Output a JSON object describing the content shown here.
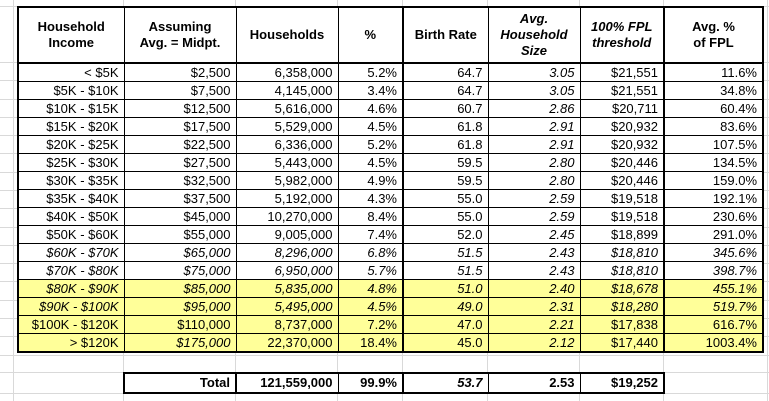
{
  "colors": {
    "highlight": "#FFFF99",
    "table_border": "#000000",
    "gridline": "#D9D9D9",
    "text": "#000000"
  },
  "table": {
    "columns": [
      "Household\nIncome",
      "Assuming\nAvg. = Midpt.",
      "Households",
      "%",
      "Birth Rate",
      "Avg.\nHousehold\nSize",
      "100% FPL\nthreshold",
      "Avg. %\nof FPL"
    ],
    "col_keys": [
      "income",
      "midpoint",
      "households",
      "pct",
      "birth_rate",
      "avg_hh_size",
      "fpl_threshold",
      "avg_pct_fpl"
    ],
    "rows": [
      {
        "income": "< $5K",
        "midpoint": "$2,500",
        "households": "6,358,000",
        "pct": "5.2%",
        "birth_rate": "64.7",
        "avg_hh_size": "3.05",
        "fpl_threshold": "$21,551",
        "avg_pct_fpl": "11.6%",
        "highlight": false,
        "italic": []
      },
      {
        "income": "$5K - $10K",
        "midpoint": "$7,500",
        "households": "4,145,000",
        "pct": "3.4%",
        "birth_rate": "64.7",
        "avg_hh_size": "3.05",
        "fpl_threshold": "$21,551",
        "avg_pct_fpl": "34.8%",
        "highlight": false,
        "italic": []
      },
      {
        "income": "$10K - $15K",
        "midpoint": "$12,500",
        "households": "5,616,000",
        "pct": "4.6%",
        "birth_rate": "60.7",
        "avg_hh_size": "2.86",
        "fpl_threshold": "$20,711",
        "avg_pct_fpl": "60.4%",
        "highlight": false,
        "italic": []
      },
      {
        "income": "$15K - $20K",
        "midpoint": "$17,500",
        "households": "5,529,000",
        "pct": "4.5%",
        "birth_rate": "61.8",
        "avg_hh_size": "2.91",
        "fpl_threshold": "$20,932",
        "avg_pct_fpl": "83.6%",
        "highlight": false,
        "italic": []
      },
      {
        "income": "$20K - $25K",
        "midpoint": "$22,500",
        "households": "6,336,000",
        "pct": "5.2%",
        "birth_rate": "61.8",
        "avg_hh_size": "2.91",
        "fpl_threshold": "$20,932",
        "avg_pct_fpl": "107.5%",
        "highlight": false,
        "italic": []
      },
      {
        "income": "$25K - $30K",
        "midpoint": "$27,500",
        "households": "5,443,000",
        "pct": "4.5%",
        "birth_rate": "59.5",
        "avg_hh_size": "2.80",
        "fpl_threshold": "$20,446",
        "avg_pct_fpl": "134.5%",
        "highlight": false,
        "italic": []
      },
      {
        "income": "$30K - $35K",
        "midpoint": "$32,500",
        "households": "5,982,000",
        "pct": "4.9%",
        "birth_rate": "59.5",
        "avg_hh_size": "2.80",
        "fpl_threshold": "$20,446",
        "avg_pct_fpl": "159.0%",
        "highlight": false,
        "italic": []
      },
      {
        "income": "$35K - $40K",
        "midpoint": "$37,500",
        "households": "5,192,000",
        "pct": "4.3%",
        "birth_rate": "55.0",
        "avg_hh_size": "2.59",
        "fpl_threshold": "$19,518",
        "avg_pct_fpl": "192.1%",
        "highlight": false,
        "italic": []
      },
      {
        "income": "$40K - $50K",
        "midpoint": "$45,000",
        "households": "10,270,000",
        "pct": "8.4%",
        "birth_rate": "55.0",
        "avg_hh_size": "2.59",
        "fpl_threshold": "$19,518",
        "avg_pct_fpl": "230.6%",
        "highlight": false,
        "italic": []
      },
      {
        "income": "$50K - $60K",
        "midpoint": "$55,000",
        "households": "9,005,000",
        "pct": "7.4%",
        "birth_rate": "52.0",
        "avg_hh_size": "2.45",
        "fpl_threshold": "$18,899",
        "avg_pct_fpl": "291.0%",
        "highlight": false,
        "italic": []
      },
      {
        "income": "$60K - $70K",
        "midpoint": "$65,000",
        "households": "8,296,000",
        "pct": "6.8%",
        "birth_rate": "51.5",
        "avg_hh_size": "2.43",
        "fpl_threshold": "$18,810",
        "avg_pct_fpl": "345.6%",
        "highlight": false,
        "italic": "all"
      },
      {
        "income": "$70K - $80K",
        "midpoint": "$75,000",
        "households": "6,950,000",
        "pct": "5.7%",
        "birth_rate": "51.5",
        "avg_hh_size": "2.43",
        "fpl_threshold": "$18,810",
        "avg_pct_fpl": "398.7%",
        "highlight": false,
        "italic": "all"
      },
      {
        "income": "$80K - $90K",
        "midpoint": "$85,000",
        "households": "5,835,000",
        "pct": "4.8%",
        "birth_rate": "51.0",
        "avg_hh_size": "2.40",
        "fpl_threshold": "$18,678",
        "avg_pct_fpl": "455.1%",
        "highlight": true,
        "italic": "all"
      },
      {
        "income": "$90K - $100K",
        "midpoint": "$95,000",
        "households": "5,495,000",
        "pct": "4.5%",
        "birth_rate": "49.0",
        "avg_hh_size": "2.31",
        "fpl_threshold": "$18,280",
        "avg_pct_fpl": "519.7%",
        "highlight": true,
        "italic": "all"
      },
      {
        "income": "$100K - $120K",
        "midpoint": "$110,000",
        "households": "8,737,000",
        "pct": "7.2%",
        "birth_rate": "47.0",
        "avg_hh_size": "2.21",
        "fpl_threshold": "$17,838",
        "avg_pct_fpl": "616.7%",
        "highlight": true,
        "italic": []
      },
      {
        "income": "> $120K",
        "midpoint": "$175,000",
        "households": "22,370,000",
        "pct": "18.4%",
        "birth_rate": "45.0",
        "avg_hh_size": "2.12",
        "fpl_threshold": "$17,440",
        "avg_pct_fpl": "1003.4%",
        "highlight": true,
        "italic": [
          "midpoint"
        ]
      }
    ],
    "total": {
      "label": "Total",
      "households": "121,559,000",
      "pct": "99.9%",
      "birth_rate": "53.7",
      "avg_hh_size": "2.53",
      "fpl_threshold": "$19,252"
    }
  }
}
